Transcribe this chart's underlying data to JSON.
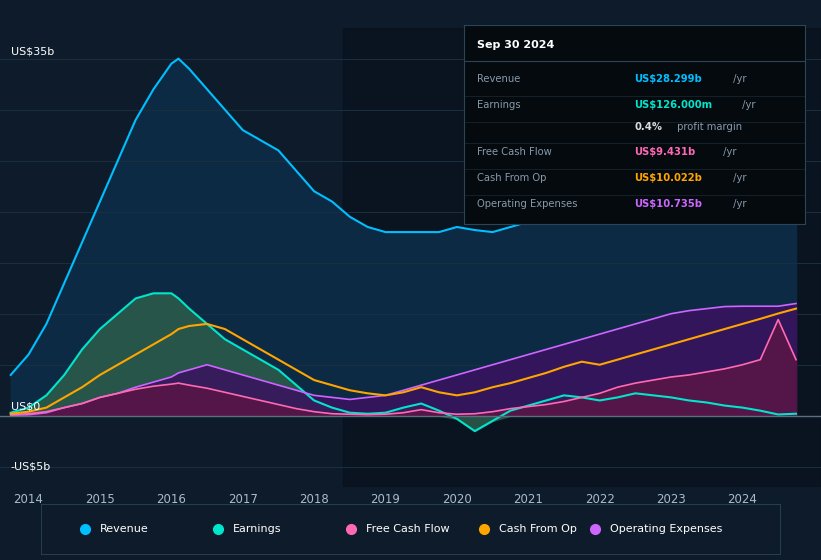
{
  "bg_color": "#0d1b2a",
  "plot_bg_color": "#0d1b2a",
  "grid_color": "#1a3040",
  "zero_line_color": "#3a5060",
  "years": [
    2013.75,
    2014.0,
    2014.25,
    2014.5,
    2014.75,
    2015.0,
    2015.25,
    2015.5,
    2015.75,
    2016.0,
    2016.1,
    2016.25,
    2016.5,
    2016.75,
    2017.0,
    2017.25,
    2017.5,
    2017.75,
    2018.0,
    2018.25,
    2018.5,
    2018.75,
    2019.0,
    2019.25,
    2019.5,
    2019.75,
    2020.0,
    2020.25,
    2020.5,
    2020.75,
    2021.0,
    2021.25,
    2021.5,
    2021.75,
    2022.0,
    2022.25,
    2022.5,
    2022.75,
    2023.0,
    2023.25,
    2023.5,
    2023.75,
    2024.0,
    2024.25,
    2024.5,
    2024.75
  ],
  "revenue": [
    4,
    6,
    9,
    13,
    17,
    21,
    25,
    29,
    32,
    34.5,
    35,
    34,
    32,
    30,
    28,
    27,
    26,
    24,
    22,
    21,
    19.5,
    18.5,
    18,
    18,
    18,
    18,
    18.5,
    18.2,
    18,
    18.5,
    19,
    20,
    21,
    22,
    23,
    23.5,
    24,
    24.5,
    25,
    25.5,
    26,
    26.5,
    27,
    27.5,
    28,
    28.3
  ],
  "earnings": [
    0.3,
    0.8,
    2,
    4,
    6.5,
    8.5,
    10,
    11.5,
    12,
    12,
    11.5,
    10.5,
    9,
    7.5,
    6.5,
    5.5,
    4.5,
    3,
    1.5,
    0.8,
    0.3,
    0.2,
    0.3,
    0.8,
    1.2,
    0.5,
    -0.3,
    -1.5,
    -0.5,
    0.5,
    1.0,
    1.5,
    2.0,
    1.8,
    1.5,
    1.8,
    2.2,
    2.0,
    1.8,
    1.5,
    1.3,
    1.0,
    0.8,
    0.5,
    0.126,
    0.2
  ],
  "free_cash_flow": [
    0.1,
    0.2,
    0.4,
    0.8,
    1.2,
    1.8,
    2.2,
    2.6,
    2.9,
    3.1,
    3.2,
    3.0,
    2.7,
    2.3,
    1.9,
    1.5,
    1.1,
    0.7,
    0.4,
    0.2,
    0.15,
    0.1,
    0.15,
    0.3,
    0.6,
    0.3,
    0.15,
    0.2,
    0.4,
    0.7,
    0.9,
    1.1,
    1.4,
    1.8,
    2.2,
    2.8,
    3.2,
    3.5,
    3.8,
    4.0,
    4.3,
    4.6,
    5.0,
    5.5,
    9.431,
    5.5
  ],
  "cash_from_op": [
    0.2,
    0.4,
    0.8,
    1.8,
    2.8,
    4.0,
    5.0,
    6.0,
    7.0,
    8.0,
    8.5,
    8.8,
    9.0,
    8.5,
    7.5,
    6.5,
    5.5,
    4.5,
    3.5,
    3.0,
    2.5,
    2.2,
    2.0,
    2.3,
    2.8,
    2.3,
    2.0,
    2.3,
    2.8,
    3.2,
    3.7,
    4.2,
    4.8,
    5.3,
    5.0,
    5.5,
    6.0,
    6.5,
    7.0,
    7.5,
    8.0,
    8.5,
    9.0,
    9.5,
    10.022,
    10.5
  ],
  "op_expenses": [
    0.05,
    0.1,
    0.3,
    0.8,
    1.2,
    1.8,
    2.2,
    2.8,
    3.3,
    3.8,
    4.2,
    4.5,
    5.0,
    4.5,
    4.0,
    3.5,
    3.0,
    2.5,
    2.0,
    1.8,
    1.6,
    1.8,
    2.0,
    2.5,
    3.0,
    3.5,
    4.0,
    4.5,
    5.0,
    5.5,
    6.0,
    6.5,
    7.0,
    7.5,
    8.0,
    8.5,
    9.0,
    9.5,
    10.0,
    10.3,
    10.5,
    10.7,
    10.735,
    10.735,
    10.735,
    11.0
  ],
  "revenue_color": "#00bfff",
  "revenue_fill": "#1a3a5c",
  "earnings_color": "#00e5cc",
  "earnings_fill_color": "#2a5a4a",
  "free_cash_flow_color": "#ff69b4",
  "cash_from_op_color": "#ffa500",
  "op_expenses_color": "#cc66ff",
  "ylim_min": -7,
  "ylim_max": 38,
  "xlim_min": 2013.6,
  "xlim_max": 2025.1,
  "x_ticks": [
    2014,
    2015,
    2016,
    2017,
    2018,
    2019,
    2020,
    2021,
    2022,
    2023,
    2024
  ],
  "legend_items": [
    "Revenue",
    "Earnings",
    "Free Cash Flow",
    "Cash From Op",
    "Operating Expenses"
  ],
  "legend_colors": [
    "#00bfff",
    "#00e5cc",
    "#ff69b4",
    "#ffa500",
    "#cc66ff"
  ],
  "info_box": {
    "date": "Sep 30 2024",
    "rows": [
      {
        "label": "Revenue",
        "value": "US$28.299b",
        "value_color": "#00bfff",
        "suffix": " /yr"
      },
      {
        "label": "Earnings",
        "value": "US$126.000m",
        "value_color": "#00e5cc",
        "suffix": " /yr"
      },
      {
        "label": "",
        "value": "0.4%",
        "value_color": "#dddddd",
        "suffix": " profit margin"
      },
      {
        "label": "Free Cash Flow",
        "value": "US$9.431b",
        "value_color": "#ff69b4",
        "suffix": " /yr"
      },
      {
        "label": "Cash From Op",
        "value": "US$10.022b",
        "value_color": "#ffa500",
        "suffix": " /yr"
      },
      {
        "label": "Operating Expenses",
        "value": "US$10.735b",
        "value_color": "#cc66ff",
        "suffix": " /yr"
      }
    ]
  },
  "shaded_region_start": 2018.4
}
